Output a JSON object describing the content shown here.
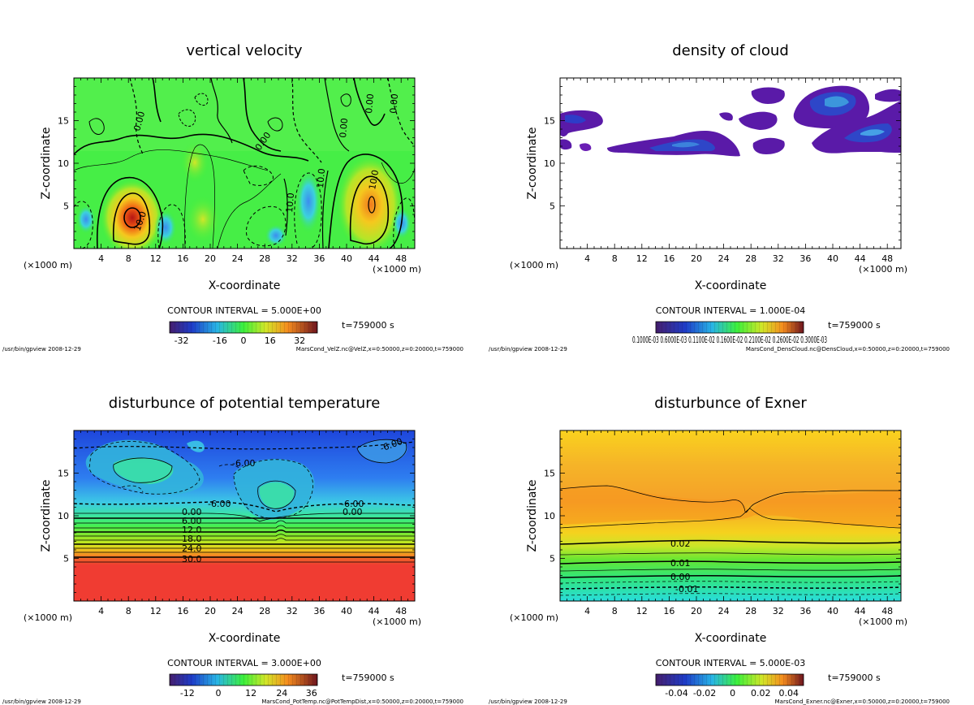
{
  "panels": [
    {
      "title": "vertical velocity",
      "xlabel": "X-coordinate",
      "ylabel": "Z-coordinate",
      "x_unit": "(×1000 m)",
      "x_unit_right": "(×1000 m)",
      "x_ticks": [
        "4",
        "8",
        "12",
        "16",
        "20",
        "24",
        "28",
        "32",
        "36",
        "40",
        "44",
        "48"
      ],
      "y_ticks": [
        "5",
        "10",
        "15"
      ],
      "contour_interval": "CONTOUR INTERVAL = 5.000E+00",
      "time": "t=759000 s",
      "colorbar_ticks": [
        "-32",
        "-16",
        "0",
        "16",
        "32"
      ],
      "footer_left": "/usr/bin/gpview  2008-12-29",
      "footer_right": "MarsCond_VelZ.nc@VelZ,x=0:50000,z=0:20000,t=759000",
      "contour_labels": [
        "0.00",
        "0.00",
        "10.0",
        "0.00",
        "10.0",
        "10.0",
        "0.00",
        "10.0",
        "0.00"
      ]
    },
    {
      "title": "density of cloud",
      "xlabel": "X-coordinate",
      "ylabel": "Z-coordinate",
      "x_unit": "(×1000 m)",
      "x_unit_right": "(×1000 m)",
      "x_ticks": [
        "4",
        "8",
        "12",
        "16",
        "20",
        "24",
        "28",
        "32",
        "36",
        "40",
        "44",
        "48"
      ],
      "y_ticks": [
        "5",
        "10",
        "15"
      ],
      "contour_interval": "CONTOUR INTERVAL = 1.000E-04",
      "time": "t=759000 s",
      "colorbar_ticks": [
        "0.1000E-03 0.6000E-03 0.1100E-02 0.1600E-02 0.2100E-02 0.2600E-02 0.3000E-03"
      ],
      "footer_left": "/usr/bin/gpview  2008-12-29",
      "footer_right": "MarsCond_DensCloud.nc@DensCloud,x=0:50000,z=0:20000,t=759000",
      "contour_labels": []
    },
    {
      "title": "disturbunce of potential temperature",
      "xlabel": "X-coordinate",
      "ylabel": "Z-coordinate",
      "x_unit": "(×1000 m)",
      "x_unit_right": "(×1000 m)",
      "x_ticks": [
        "4",
        "8",
        "12",
        "16",
        "20",
        "24",
        "28",
        "32",
        "36",
        "40",
        "44",
        "48"
      ],
      "y_ticks": [
        "5",
        "10",
        "15"
      ],
      "contour_interval": "CONTOUR INTERVAL = 3.000E+00",
      "time": "t=759000 s",
      "colorbar_ticks": [
        "-12",
        "0",
        "12",
        "24",
        "36"
      ],
      "footer_left": "/usr/bin/gpview  2008-12-29",
      "footer_right": "MarsCond_PotTemp.nc@PotTempDist,x=0:50000,z=0:20000,t=759000",
      "contour_labels": [
        "-6.00",
        "-6.00",
        "0.00",
        "6.00",
        "12.0",
        "18.0",
        "24.0",
        "30.0",
        "0.00",
        "-6.00",
        "-6.00"
      ]
    },
    {
      "title": "disturbunce of Exner",
      "xlabel": "X-coordinate",
      "ylabel": "Z-coordinate",
      "x_unit": "(×1000 m)",
      "x_unit_right": "(×1000 m)",
      "x_ticks": [
        "4",
        "8",
        "12",
        "16",
        "20",
        "24",
        "28",
        "32",
        "36",
        "40",
        "44",
        "48"
      ],
      "y_ticks": [
        "5",
        "10",
        "15"
      ],
      "contour_interval": "CONTOUR INTERVAL = 5.000E-03",
      "time": "t=759000 s",
      "colorbar_ticks": [
        "-0.04",
        "-0.02",
        "0",
        "0.02",
        "0.04"
      ],
      "footer_left": "/usr/bin/gpview  2008-12-29",
      "footer_right": "MarsCond_Exner.nc@Exner,x=0:50000,z=0:20000,t=759000",
      "contour_labels": [
        "0.02",
        "0.01",
        "0.00",
        "-0.01"
      ]
    }
  ],
  "chart_data": [
    {
      "type": "heatmap",
      "title": "vertical velocity",
      "xlabel": "X-coordinate",
      "ylabel": "Z-coordinate",
      "xlim": [
        0,
        50
      ],
      "ylim": [
        0,
        20
      ],
      "colorbar_range": [
        -40,
        40
      ],
      "contour_interval": 5.0,
      "colors": {
        "background": "#3cf03c",
        "min": "#1e2a8f",
        "max": "#7a0a1e"
      },
      "features": [
        {
          "kind": "updraft",
          "x": 8.5,
          "z": 4,
          "peak": 30
        },
        {
          "kind": "updraft",
          "x": 43.5,
          "z": 5,
          "peak": 20
        },
        {
          "kind": "updraft",
          "x": 19,
          "z": 3,
          "peak": 10
        },
        {
          "kind": "downdraft",
          "x": 34,
          "z": 6,
          "peak": -15
        },
        {
          "kind": "downdraft",
          "x": 13.5,
          "z": 2,
          "peak": -10
        }
      ]
    },
    {
      "type": "heatmap",
      "title": "density of cloud",
      "xlabel": "X-coordinate",
      "ylabel": "Z-coordinate",
      "xlim": [
        0,
        50
      ],
      "ylim": [
        0,
        20
      ],
      "contour_interval": 0.0001,
      "colors": {
        "cloud": "#5a1aa8",
        "dense": "#1e40c8",
        "background": "#ffffff"
      },
      "features": [
        {
          "kind": "cloud",
          "x_range": [
            0,
            6
          ],
          "z_range": [
            12,
            16
          ]
        },
        {
          "kind": "cloud",
          "x_range": [
            7,
            26
          ],
          "z_range": [
            11,
            14
          ]
        },
        {
          "kind": "cloud",
          "x_range": [
            26,
            34
          ],
          "z_range": [
            12,
            18
          ]
        },
        {
          "kind": "cloud",
          "x_range": [
            34,
            50
          ],
          "z_range": [
            12,
            18
          ]
        }
      ]
    },
    {
      "type": "heatmap",
      "title": "disturbunce of potential temperature",
      "xlabel": "X-coordinate",
      "ylabel": "Z-coordinate",
      "xlim": [
        0,
        50
      ],
      "ylim": [
        0,
        20
      ],
      "colorbar_range": [
        -18,
        42
      ],
      "contour_interval": 3.0,
      "contour_levels_labeled": [
        {
          "value": 0,
          "z": 9.7
        },
        {
          "value": 6,
          "z": 9.2
        },
        {
          "value": 12,
          "z": 8.1
        },
        {
          "value": 18,
          "z": 7.1
        },
        {
          "value": 24,
          "z": 5.9
        },
        {
          "value": 30,
          "z": 4.8
        }
      ],
      "colors": {
        "top": "#1e50e6",
        "bottom": "#f03c32"
      }
    },
    {
      "type": "heatmap",
      "title": "disturbunce of Exner",
      "xlabel": "X-coordinate",
      "ylabel": "Z-coordinate",
      "xlim": [
        0,
        50
      ],
      "ylim": [
        0,
        20
      ],
      "colorbar_range": [
        -0.05,
        0.05
      ],
      "contour_interval": 0.005,
      "contour_levels_labeled": [
        {
          "value": 0.02,
          "z": 6.6
        },
        {
          "value": 0.01,
          "z": 4.3
        },
        {
          "value": 0.0,
          "z": 2.9
        },
        {
          "value": -0.01,
          "z": 1.5
        }
      ],
      "colors": {
        "top": "#ffd21e",
        "middle": "#f5a028",
        "bottom": "#28dcc8"
      }
    }
  ]
}
